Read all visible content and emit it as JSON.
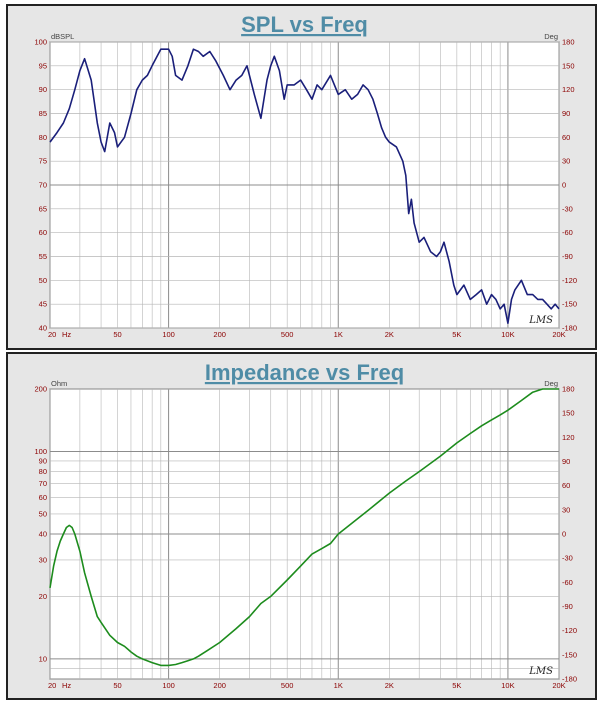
{
  "chart_data": [
    {
      "type": "line",
      "title": "SPL vs Freq",
      "title_color": "#4f8ca6",
      "ylabel": "dBSPL",
      "y2label": "Deg",
      "xlim": [
        20,
        20000
      ],
      "x_scale": "log",
      "ylim": [
        40,
        100
      ],
      "y2lim": [
        -180,
        180
      ],
      "grid": true,
      "line_color": "#1a1f7a",
      "x_ticks": [
        {
          "v": 20,
          "label": "20"
        },
        {
          "v": 50,
          "label": "50"
        },
        {
          "v": 100,
          "label": "100"
        },
        {
          "v": 200,
          "label": "200"
        },
        {
          "v": 500,
          "label": "500"
        },
        {
          "v": 1000,
          "label": "1K"
        },
        {
          "v": 2000,
          "label": "2K"
        },
        {
          "v": 5000,
          "label": "5K"
        },
        {
          "v": 10000,
          "label": "10K"
        },
        {
          "v": 20000,
          "label": "20K"
        }
      ],
      "x_unit": "Hz",
      "y_ticks": [
        {
          "v": 40,
          "label": "40"
        },
        {
          "v": 45,
          "label": "45"
        },
        {
          "v": 50,
          "label": "50"
        },
        {
          "v": 55,
          "label": "55"
        },
        {
          "v": 60,
          "label": "60"
        },
        {
          "v": 65,
          "label": "65"
        },
        {
          "v": 70,
          "label": "70"
        },
        {
          "v": 75,
          "label": "75"
        },
        {
          "v": 80,
          "label": "80"
        },
        {
          "v": 85,
          "label": "85"
        },
        {
          "v": 90,
          "label": "90"
        },
        {
          "v": 95,
          "label": "95"
        },
        {
          "v": 100,
          "label": "100"
        }
      ],
      "y2_ticks": [
        {
          "v": 180,
          "label": "180"
        },
        {
          "v": 150,
          "label": "150"
        },
        {
          "v": 120,
          "label": "120"
        },
        {
          "v": 90,
          "label": "90"
        },
        {
          "v": 60,
          "label": "60"
        },
        {
          "v": 30,
          "label": "30"
        },
        {
          "v": 0,
          "label": "0"
        },
        {
          "v": -30,
          "label": "-30"
        },
        {
          "v": -60,
          "label": "-60"
        },
        {
          "v": -90,
          "label": "-90"
        },
        {
          "v": -120,
          "label": "-120"
        },
        {
          "v": -150,
          "label": "-150"
        },
        {
          "v": -180,
          "label": "-180"
        }
      ],
      "series": [
        {
          "x": [
            20,
            22,
            24,
            26,
            28,
            30,
            32,
            35,
            38,
            40,
            42,
            45,
            48,
            50,
            55,
            60,
            65,
            70,
            75,
            80,
            90,
            100,
            105,
            110,
            120,
            130,
            140,
            150,
            160,
            175,
            190,
            210,
            230,
            250,
            270,
            290,
            320,
            350,
            380,
            400,
            420,
            450,
            480,
            500,
            550,
            600,
            650,
            700,
            750,
            800,
            900,
            1000,
            1100,
            1200,
            1300,
            1400,
            1500,
            1600,
            1700,
            1800,
            1900,
            2000,
            2200,
            2400,
            2500,
            2600,
            2700,
            2800,
            3000,
            3200,
            3500,
            3800,
            4000,
            4200,
            4500,
            4800,
            5000,
            5500,
            6000,
            6500,
            7000,
            7500,
            8000,
            8500,
            9000,
            9500,
            10000,
            10500,
            11000,
            12000,
            13000,
            14000,
            15000,
            16000,
            17000,
            18000,
            19000,
            20000
          ],
          "values": [
            79,
            81,
            83,
            86,
            90,
            94,
            96.5,
            92,
            83,
            79,
            77,
            83,
            81,
            78,
            80,
            85,
            90,
            92,
            93,
            95,
            98.5,
            98.5,
            97,
            93,
            92,
            95,
            98.5,
            98,
            97,
            98,
            96,
            93,
            90,
            92,
            93,
            95,
            89,
            84,
            92,
            95,
            97,
            94,
            88,
            91,
            91,
            92,
            90,
            88,
            91,
            90,
            93,
            89,
            90,
            88,
            89,
            91,
            90,
            88,
            85,
            82,
            80,
            79,
            78,
            75,
            72,
            64,
            67,
            62,
            58,
            59,
            56,
            55,
            56,
            58,
            54,
            49,
            47,
            49,
            46,
            47,
            48,
            45,
            47,
            46,
            44,
            45,
            41,
            46,
            48,
            50,
            47,
            47,
            46,
            46,
            45,
            44,
            45,
            44
          ]
        }
      ],
      "annotations": [
        "LMS"
      ]
    },
    {
      "type": "line",
      "title": "Impedance vs Freq",
      "title_color": "#4f8ca6",
      "ylabel": "Ohm",
      "y2label": "Deg",
      "xlim": [
        20,
        20000
      ],
      "x_scale": "log",
      "ylim": [
        8,
        200
      ],
      "y_scale": "log",
      "y2lim": [
        -180,
        180
      ],
      "grid": true,
      "line_color": "#1d8c1d",
      "x_ticks": [
        {
          "v": 20,
          "label": "20"
        },
        {
          "v": 50,
          "label": "50"
        },
        {
          "v": 100,
          "label": "100"
        },
        {
          "v": 200,
          "label": "200"
        },
        {
          "v": 500,
          "label": "500"
        },
        {
          "v": 1000,
          "label": "1K"
        },
        {
          "v": 2000,
          "label": "2K"
        },
        {
          "v": 5000,
          "label": "5K"
        },
        {
          "v": 10000,
          "label": "10K"
        },
        {
          "v": 20000,
          "label": "20K"
        }
      ],
      "x_unit": "Hz",
      "y_ticks": [
        {
          "v": 10,
          "label": "10"
        },
        {
          "v": 20,
          "label": "20"
        },
        {
          "v": 30,
          "label": "30"
        },
        {
          "v": 40,
          "label": "40"
        },
        {
          "v": 50,
          "label": "50"
        },
        {
          "v": 60,
          "label": "60"
        },
        {
          "v": 70,
          "label": "70"
        },
        {
          "v": 80,
          "label": "80"
        },
        {
          "v": 90,
          "label": "90"
        },
        {
          "v": 100,
          "label": "100"
        },
        {
          "v": 200,
          "label": "200"
        }
      ],
      "y2_ticks": [
        {
          "v": 180,
          "label": "180"
        },
        {
          "v": 150,
          "label": "150"
        },
        {
          "v": 120,
          "label": "120"
        },
        {
          "v": 90,
          "label": "90"
        },
        {
          "v": 60,
          "label": "60"
        },
        {
          "v": 30,
          "label": "30"
        },
        {
          "v": 0,
          "label": "0"
        },
        {
          "v": -30,
          "label": "-30"
        },
        {
          "v": -60,
          "label": "-60"
        },
        {
          "v": -90,
          "label": "-90"
        },
        {
          "v": -120,
          "label": "-120"
        },
        {
          "v": -150,
          "label": "-150"
        },
        {
          "v": -180,
          "label": "-180"
        }
      ],
      "series": [
        {
          "x": [
            20,
            21,
            22,
            23,
            24,
            25,
            26,
            27,
            28,
            30,
            32,
            35,
            38,
            40,
            45,
            50,
            55,
            60,
            65,
            70,
            80,
            90,
            100,
            110,
            120,
            130,
            140,
            150,
            170,
            200,
            250,
            300,
            350,
            400,
            500,
            600,
            700,
            800,
            900,
            1000,
            1200,
            1500,
            2000,
            2500,
            3000,
            4000,
            5000,
            6000,
            7000,
            8000,
            9000,
            10000,
            12000,
            14000,
            16000,
            18000,
            20000
          ],
          "values": [
            22,
            28,
            33,
            37,
            40,
            43,
            44,
            43,
            40,
            33,
            26,
            20,
            16,
            15,
            13,
            12,
            11.5,
            10.8,
            10.3,
            10.0,
            9.6,
            9.3,
            9.3,
            9.4,
            9.6,
            9.8,
            10.0,
            10.3,
            11.0,
            12.0,
            14.0,
            16.0,
            18.5,
            20.0,
            24.0,
            28.0,
            32.0,
            34.0,
            36.0,
            40.0,
            45.0,
            52.0,
            63.0,
            72.0,
            80.0,
            95.0,
            110.0,
            122.0,
            133.0,
            142.0,
            150.0,
            158.0,
            176.0,
            193.0,
            208.0,
            222.0,
            234.0
          ]
        }
      ],
      "annotations": [
        "LMS"
      ]
    }
  ]
}
